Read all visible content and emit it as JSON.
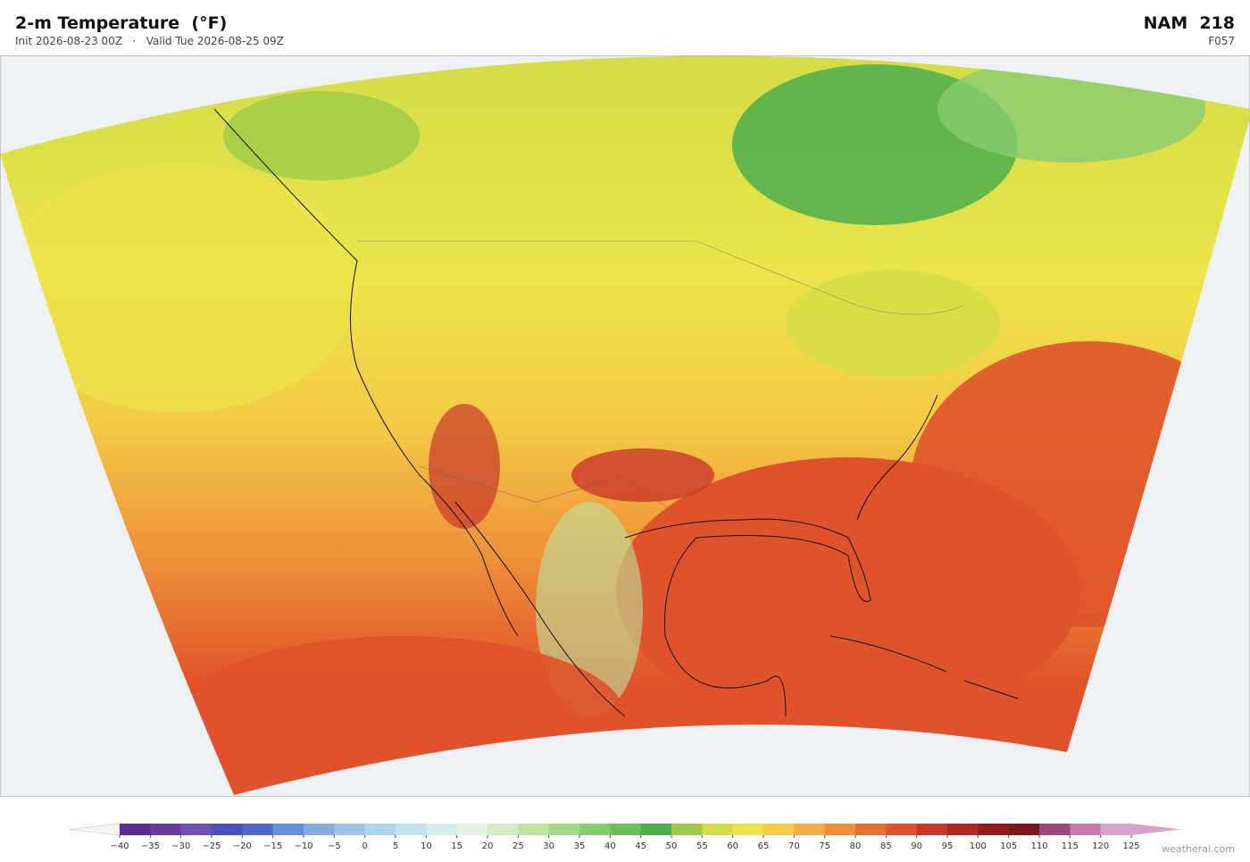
{
  "header": {
    "title": "2-m Temperature  (°F)",
    "subtitle": "Init 2026-08-23 00Z   ·   Valid Tue 2026-08-25 09Z",
    "model": "NAM  218",
    "forecast": "F057"
  },
  "colorbar": {
    "ticks": [
      {
        "value": -40,
        "label": "−40"
      },
      {
        "value": -35,
        "label": "−35"
      },
      {
        "value": -30,
        "label": "−30"
      },
      {
        "value": -25,
        "label": "−25"
      },
      {
        "value": -20,
        "label": "−20"
      },
      {
        "value": -15,
        "label": "−15"
      },
      {
        "value": -10,
        "label": "−10"
      },
      {
        "value": -5,
        "label": "−5"
      },
      0,
      5,
      10,
      15,
      20,
      25,
      30,
      35,
      40,
      45,
      50,
      55,
      60,
      65,
      70,
      75,
      80,
      85,
      90,
      95,
      100,
      105,
      110,
      115,
      120,
      125
    ],
    "colors": [
      "#5b2d8e",
      "#6a3a9c",
      "#7050b0",
      "#4c4fc0",
      "#5068cc",
      "#6a8fd8",
      "#85acdc",
      "#9cc3e4",
      "#aed4ea",
      "#c3e2ee",
      "#d6ecef",
      "#e2f2e6",
      "#d4ecc6",
      "#bee3a0",
      "#a4d78a",
      "#88cc72",
      "#6bbf5e",
      "#4cae4c",
      "#9ccb4a",
      "#d3dc46",
      "#ece44a",
      "#f4c945",
      "#f2ae40",
      "#ee8f38",
      "#e97032",
      "#e0522b",
      "#c9362a",
      "#b32624",
      "#961c21",
      "#7d171e",
      "#9a4a7a",
      "#c47aaa",
      "#d7a4cc"
    ],
    "under_color": "#f4f4f6",
    "over_color": "#d99fd0"
  },
  "credit": "weatherai.com"
}
